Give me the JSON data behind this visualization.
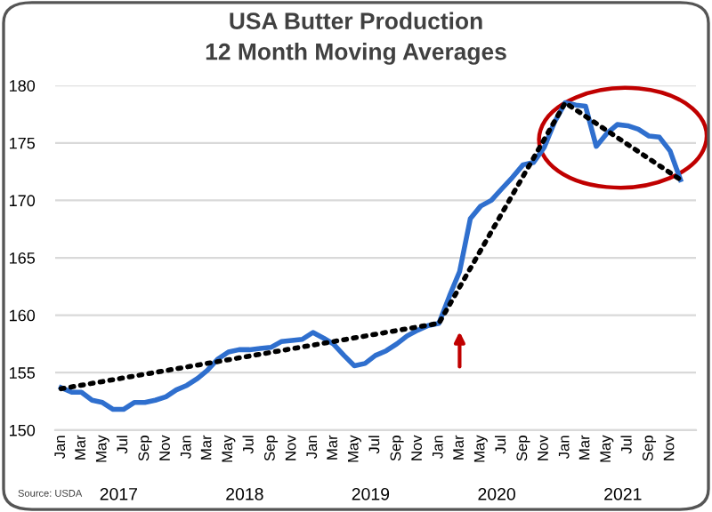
{
  "chart_data": {
    "type": "line",
    "title": "USA Butter Production",
    "subtitle": "12 Month Moving Averages",
    "x": [
      "2017-01",
      "2017-02",
      "2017-03",
      "2017-04",
      "2017-05",
      "2017-06",
      "2017-07",
      "2017-08",
      "2017-09",
      "2017-10",
      "2017-11",
      "2017-12",
      "2018-01",
      "2018-02",
      "2018-03",
      "2018-04",
      "2018-05",
      "2018-06",
      "2018-07",
      "2018-08",
      "2018-09",
      "2018-10",
      "2018-11",
      "2018-12",
      "2019-01",
      "2019-02",
      "2019-03",
      "2019-04",
      "2019-05",
      "2019-06",
      "2019-07",
      "2019-08",
      "2019-09",
      "2019-10",
      "2019-11",
      "2019-12",
      "2020-01",
      "2020-02",
      "2020-03",
      "2020-04",
      "2020-05",
      "2020-06",
      "2020-07",
      "2020-08",
      "2020-09",
      "2020-10",
      "2020-11",
      "2020-12",
      "2021-01",
      "2021-02",
      "2021-03",
      "2021-04",
      "2021-05",
      "2021-06",
      "2021-07",
      "2021-08",
      "2021-09",
      "2021-10",
      "2021-11",
      "2021-12"
    ],
    "series": [
      {
        "color": "#2f6fce",
        "line_style": "solid",
        "values": [
          153.7,
          153.3,
          153.3,
          152.6,
          152.4,
          151.8,
          151.8,
          152.4,
          152.4,
          152.6,
          152.9,
          153.5,
          153.9,
          154.5,
          155.2,
          156.2,
          156.8,
          157.0,
          157.0,
          157.1,
          157.2,
          157.7,
          157.8,
          157.9,
          158.5,
          158.0,
          157.5,
          156.5,
          155.6,
          155.8,
          156.5,
          156.9,
          157.5,
          158.2,
          158.7,
          159.1,
          159.3,
          161.7,
          163.8,
          168.4,
          169.5,
          170.0,
          171.0,
          172.0,
          173.1,
          173.3,
          174.6,
          176.8,
          178.5,
          178.3,
          178.2,
          174.7,
          175.8,
          176.6,
          176.5,
          176.2,
          175.6,
          175.5,
          174.3,
          171.8
        ]
      },
      {
        "color": "#000000",
        "line_style": "dotted",
        "x": [
          "2017-01",
          "2020-01",
          "2021-01",
          "2021-12"
        ],
        "values": [
          153.6,
          159.3,
          178.5,
          171.8
        ]
      }
    ],
    "xlim": [
      "2016-12-15",
      "2022-01-15"
    ],
    "xticks": [
      {
        "value": "2017-01",
        "label": "Jan"
      },
      {
        "value": "2017-03",
        "label": "Mar"
      },
      {
        "value": "2017-05",
        "label": "May"
      },
      {
        "value": "2017-07",
        "label": "Jul"
      },
      {
        "value": "2017-09",
        "label": "Sep"
      },
      {
        "value": "2017-11",
        "label": "Nov"
      },
      {
        "value": "2018-01",
        "label": "Jan"
      },
      {
        "value": "2018-03",
        "label": "Mar"
      },
      {
        "value": "2018-05",
        "label": "May"
      },
      {
        "value": "2018-07",
        "label": "Jul"
      },
      {
        "value": "2018-09",
        "label": "Sep"
      },
      {
        "value": "2018-11",
        "label": "Nov"
      },
      {
        "value": "2019-01",
        "label": "Jan"
      },
      {
        "value": "2019-03",
        "label": "Mar"
      },
      {
        "value": "2019-05",
        "label": "May"
      },
      {
        "value": "2019-07",
        "label": "Jul"
      },
      {
        "value": "2019-09",
        "label": "Sep"
      },
      {
        "value": "2019-11",
        "label": "Nov"
      },
      {
        "value": "2020-01",
        "label": "Jan"
      },
      {
        "value": "2020-03",
        "label": "Mar"
      },
      {
        "value": "2020-05",
        "label": "May"
      },
      {
        "value": "2020-07",
        "label": "Jul"
      },
      {
        "value": "2020-09",
        "label": "Sep"
      },
      {
        "value": "2020-11",
        "label": "Nov"
      },
      {
        "value": "2021-01",
        "label": "Jan"
      },
      {
        "value": "2021-03",
        "label": "Mar"
      },
      {
        "value": "2021-05",
        "label": "May"
      },
      {
        "value": "2021-07",
        "label": "Jul"
      },
      {
        "value": "2021-09",
        "label": "Sep"
      },
      {
        "value": "2021-11",
        "label": "Nov"
      }
    ],
    "ylim": [
      150,
      180
    ],
    "yticks": [
      150,
      155,
      160,
      165,
      170,
      175,
      180
    ],
    "grid": "y",
    "legend": false,
    "annotations": [
      "2017",
      "2018",
      "2019",
      "2020",
      "2021",
      "Source: USDA"
    ]
  }
}
